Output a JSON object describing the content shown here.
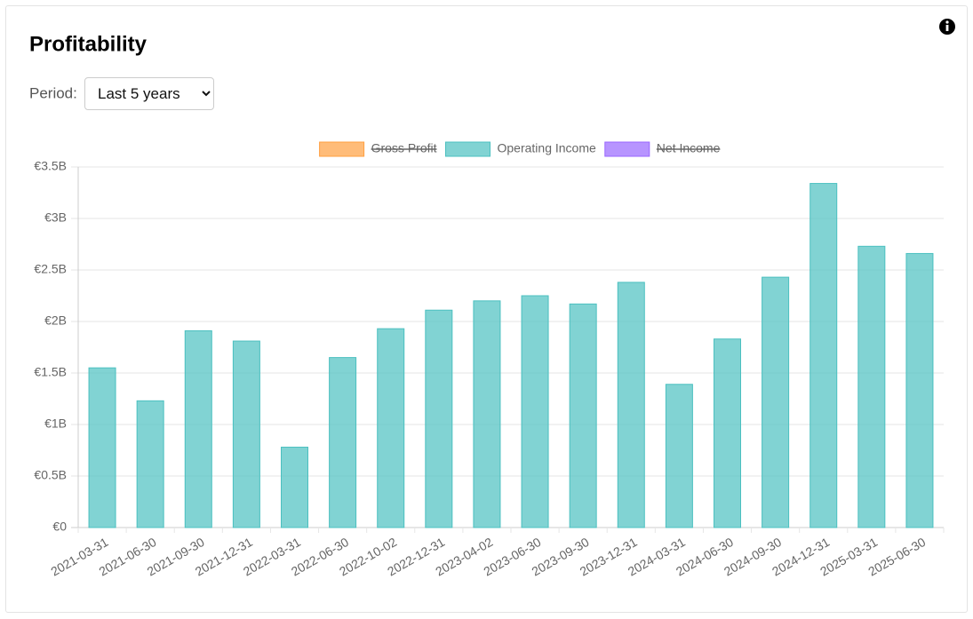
{
  "header": {
    "title": "Profitability",
    "period_label": "Period:",
    "period_value": "Last 5 years"
  },
  "chart_data": {
    "type": "bar",
    "categories": [
      "2021-03-31",
      "2021-06-30",
      "2021-09-30",
      "2021-12-31",
      "2022-03-31",
      "2022-06-30",
      "2022-10-02",
      "2022-12-31",
      "2023-04-02",
      "2023-06-30",
      "2023-09-30",
      "2023-12-31",
      "2024-03-31",
      "2024-06-30",
      "2024-09-30",
      "2024-12-31",
      "2025-03-31",
      "2025-06-30"
    ],
    "series": [
      {
        "name": "Gross Profit",
        "color": "#ff9f40",
        "hidden": true,
        "values": [
          null,
          null,
          null,
          null,
          null,
          null,
          null,
          null,
          null,
          null,
          null,
          null,
          null,
          null,
          null,
          null,
          null,
          null
        ]
      },
      {
        "name": "Operating Income",
        "color": "#4bc0c0",
        "hidden": false,
        "values": [
          1550000000,
          1230000000,
          1910000000,
          1810000000,
          780000000,
          1650000000,
          1930000000,
          2110000000,
          2200000000,
          2250000000,
          2170000000,
          2380000000,
          1390000000,
          1830000000,
          2430000000,
          3340000000,
          2730000000,
          2660000000
        ]
      },
      {
        "name": "Net Income",
        "color": "#9966ff",
        "hidden": true,
        "values": [
          null,
          null,
          null,
          null,
          null,
          null,
          null,
          null,
          null,
          null,
          null,
          null,
          null,
          null,
          null,
          null,
          null,
          null
        ]
      }
    ],
    "ylim": [
      0,
      3500000000
    ],
    "yticks": [
      {
        "value": 0,
        "label": "€0"
      },
      {
        "value": 500000000,
        "label": "€0.5B"
      },
      {
        "value": 1000000000,
        "label": "€1B"
      },
      {
        "value": 1500000000,
        "label": "€1.5B"
      },
      {
        "value": 2000000000,
        "label": "€2B"
      },
      {
        "value": 2500000000,
        "label": "€2.5B"
      },
      {
        "value": 3000000000,
        "label": "€3B"
      },
      {
        "value": 3500000000,
        "label": "€3.5B"
      }
    ],
    "grid": true,
    "legend": "top"
  }
}
